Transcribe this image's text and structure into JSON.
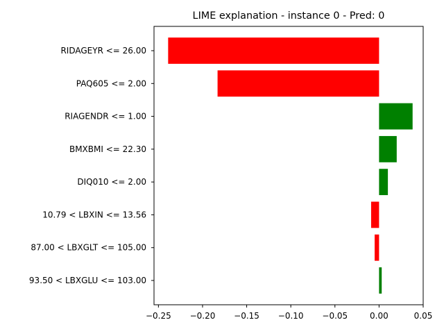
{
  "chart_data": {
    "type": "bar",
    "orientation": "horizontal",
    "title": "LIME explanation - instance 0 - Pred: 0",
    "xlabel": "",
    "ylabel": "",
    "xlim": [
      -0.255,
      0.05
    ],
    "xticks": [
      -0.25,
      -0.2,
      -0.15,
      -0.1,
      -0.05,
      0.0,
      0.05
    ],
    "xtick_labels": [
      "−0.25",
      "−0.20",
      "−0.15",
      "−0.10",
      "−0.05",
      "0.00",
      "0.05"
    ],
    "grid": false,
    "legend": "none",
    "categories": [
      "RIDAGEYR <= 26.00",
      "PAQ605 <= 2.00",
      "RIAGENDR <= 1.00",
      "BMXBMI <= 22.30",
      "DIQ010 <= 2.00",
      "10.79 < LBXIN <= 13.56",
      "87.00 < LBXGLT <= 105.00",
      "93.50 < LBXGLU <= 103.00"
    ],
    "values": [
      -0.239,
      -0.183,
      0.038,
      0.02,
      0.01,
      -0.009,
      -0.005,
      0.003
    ],
    "colors": {
      "positive": "#008000",
      "negative": "#ff0000"
    }
  }
}
